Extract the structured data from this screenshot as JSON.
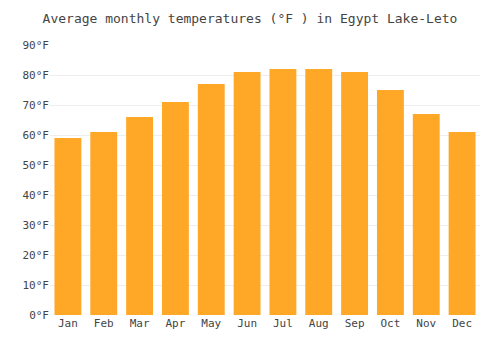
{
  "chart_data": {
    "type": "bar",
    "title": "Average monthly temperatures (°F ) in Egypt Lake-Leto",
    "categories": [
      "Jan",
      "Feb",
      "Mar",
      "Apr",
      "May",
      "Jun",
      "Jul",
      "Aug",
      "Sep",
      "Oct",
      "Nov",
      "Dec"
    ],
    "values": [
      59,
      61,
      66,
      71,
      77,
      81,
      82,
      82,
      81,
      75,
      67,
      61
    ],
    "color": "#FFA726",
    "ylim": [
      0,
      90
    ],
    "yticks": [
      {
        "value": 0,
        "label": "0°F"
      },
      {
        "value": 10,
        "label": "10°F"
      },
      {
        "value": 20,
        "label": "20°F"
      },
      {
        "value": 30,
        "label": "30°F"
      },
      {
        "value": 40,
        "label": "40°F"
      },
      {
        "value": 50,
        "label": "50°F"
      },
      {
        "value": 60,
        "label": "60°F"
      },
      {
        "value": 70,
        "label": "70°F"
      },
      {
        "value": 80,
        "label": "80°F"
      },
      {
        "value": 90,
        "label": "90°F"
      }
    ],
    "grid": true
  }
}
